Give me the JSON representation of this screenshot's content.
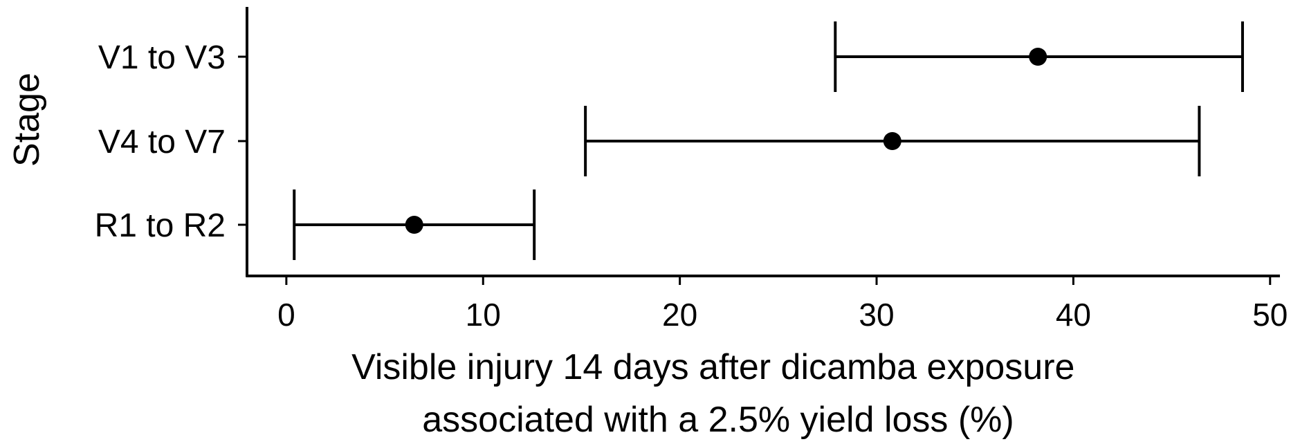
{
  "chart_data": {
    "type": "scatter",
    "title": "",
    "xlabel": [
      "Visible injury 14 days after dicamba exposure",
      "associated with a 2.5% yield loss (%)"
    ],
    "ylabel": "Stage",
    "xlim": [
      -2,
      50.5
    ],
    "xticks": [
      0,
      10,
      20,
      30,
      40,
      50
    ],
    "xtick_labels": [
      "0",
      "10",
      "20",
      "30",
      "40",
      "50"
    ],
    "grid": false,
    "legend": "none",
    "categories": [
      "V1 to V3",
      "V4 to V7",
      "R1 to R2"
    ],
    "series": [
      {
        "points": [
          {
            "category": "V1 to V3",
            "estimate": 38.2,
            "lower": 27.9,
            "upper": 48.6
          },
          {
            "category": "V4 to V7",
            "estimate": 30.8,
            "lower": 15.2,
            "upper": 46.4
          },
          {
            "category": "R1 to R2",
            "estimate": 6.5,
            "lower": 0.4,
            "upper": 12.6
          }
        ]
      }
    ],
    "colors": {
      "point": "#000000",
      "line": "#000000"
    }
  }
}
